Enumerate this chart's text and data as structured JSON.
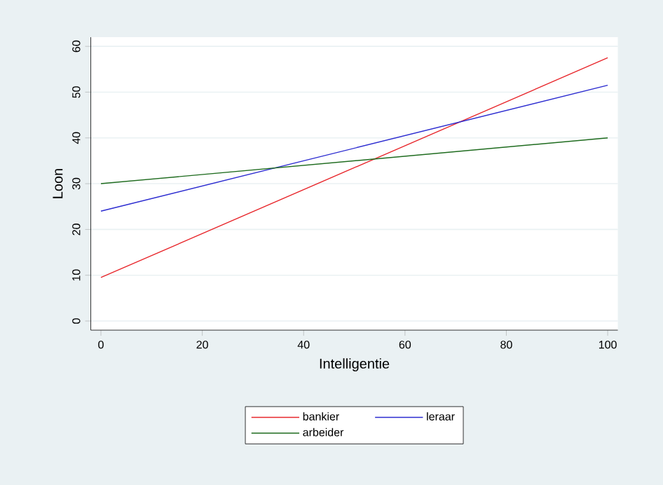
{
  "chart_data": {
    "type": "line",
    "xlabel": "Intelligentie",
    "ylabel": "Loon",
    "x": [
      0,
      100
    ],
    "series": [
      {
        "name": "bankier",
        "color": "#e8262b",
        "values": [
          9.5,
          57.5
        ]
      },
      {
        "name": "leraar",
        "color": "#2b2bd0",
        "values": [
          24,
          51.5
        ]
      },
      {
        "name": "arbeider",
        "color": "#1e6b1e",
        "values": [
          30,
          40
        ]
      }
    ],
    "xlim": [
      -2,
      102
    ],
    "ylim": [
      -2,
      62
    ],
    "xticks": [
      0,
      20,
      40,
      60,
      80,
      100
    ],
    "yticks": [
      0,
      10,
      20,
      30,
      40,
      50,
      60
    ],
    "grid": "y",
    "legend": "bottom",
    "marker": "none",
    "line_style": "solid"
  }
}
